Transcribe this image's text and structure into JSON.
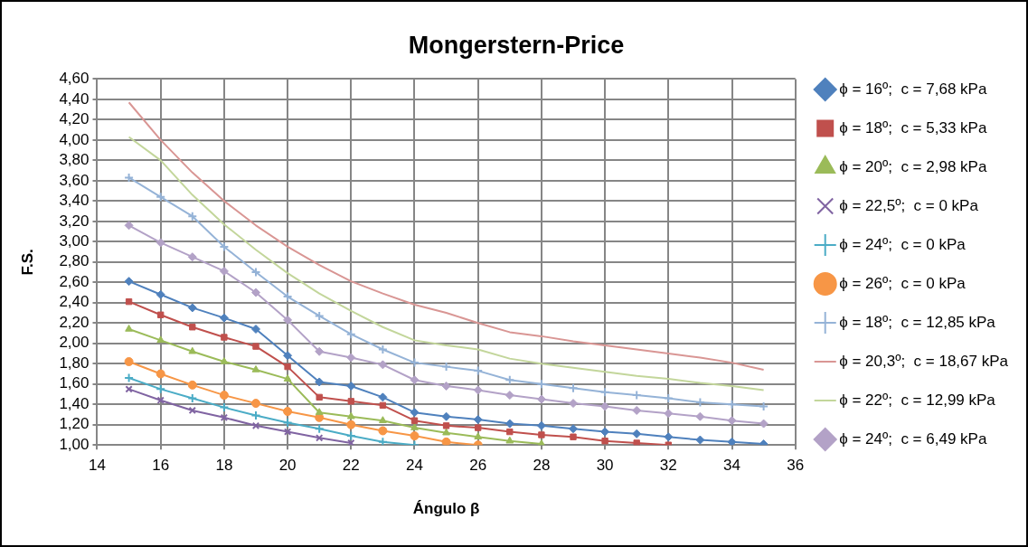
{
  "chart_data": {
    "type": "line",
    "title": "Mongerstern-Price",
    "xlabel": "Ángulo β",
    "ylabel": "F.S.",
    "x": [
      15,
      16,
      17,
      18,
      19,
      20,
      21,
      22,
      23,
      24,
      25,
      26,
      27,
      28,
      29,
      30,
      31,
      32,
      33,
      34,
      35
    ],
    "xlim": [
      14,
      36
    ],
    "xticks": [
      14,
      16,
      18,
      20,
      22,
      24,
      26,
      28,
      30,
      32,
      34,
      36
    ],
    "ylim": [
      1.0,
      4.6
    ],
    "yticks": [
      {
        "value": 1.0,
        "label": "1,00"
      },
      {
        "value": 1.2,
        "label": "1,20"
      },
      {
        "value": 1.4,
        "label": "1,40"
      },
      {
        "value": 1.6,
        "label": "1,60"
      },
      {
        "value": 1.8,
        "label": "1,80"
      },
      {
        "value": 2.0,
        "label": "2,00"
      },
      {
        "value": 2.2,
        "label": "2,20"
      },
      {
        "value": 2.4,
        "label": "2,40"
      },
      {
        "value": 2.6,
        "label": "2,60"
      },
      {
        "value": 2.8,
        "label": "2,80"
      },
      {
        "value": 3.0,
        "label": "3,00"
      },
      {
        "value": 3.2,
        "label": "3,20"
      },
      {
        "value": 3.4,
        "label": "3,40"
      },
      {
        "value": 3.6,
        "label": "3,60"
      },
      {
        "value": 3.8,
        "label": "3,80"
      },
      {
        "value": 4.0,
        "label": "4,00"
      },
      {
        "value": 4.2,
        "label": "4,20"
      },
      {
        "value": 4.4,
        "label": "4,40"
      },
      {
        "value": 4.6,
        "label": "4,60"
      }
    ],
    "grid": true,
    "legend": "right",
    "line_style": "solid",
    "series": [
      {
        "name": "ϕ = 16º;  c = 7,68 kPa",
        "color": "#4f81bd",
        "marker": "diamond",
        "values": [
          2.61,
          2.48,
          2.35,
          2.25,
          2.14,
          1.88,
          1.62,
          1.58,
          1.47,
          1.32,
          1.28,
          1.25,
          1.21,
          1.19,
          1.16,
          1.13,
          1.11,
          1.08,
          1.05,
          1.03,
          1.01
        ]
      },
      {
        "name": "ϕ = 18º;  c = 5,33 kPa",
        "color": "#c0504d",
        "marker": "square",
        "values": [
          2.41,
          2.28,
          2.16,
          2.06,
          1.97,
          1.77,
          1.47,
          1.43,
          1.39,
          1.24,
          1.19,
          1.17,
          1.13,
          1.1,
          1.08,
          1.04,
          1.02,
          1.0,
          null,
          null,
          null
        ]
      },
      {
        "name": "ϕ = 20º;  c = 2,98 kPa",
        "color": "#9bbb59",
        "marker": "triangle",
        "values": [
          2.14,
          2.03,
          1.92,
          1.82,
          1.74,
          1.65,
          1.32,
          1.28,
          1.24,
          1.17,
          1.12,
          1.08,
          1.04,
          1.01,
          null,
          null,
          null,
          null,
          null,
          null,
          null
        ]
      },
      {
        "name": "ϕ = 22,5º;  c = 0 kPa",
        "color": "#8064a2",
        "marker": "x",
        "values": [
          1.55,
          1.44,
          1.34,
          1.27,
          1.19,
          1.13,
          1.07,
          1.02,
          null,
          null,
          null,
          null,
          null,
          null,
          null,
          null,
          null,
          null,
          null,
          null,
          null
        ]
      },
      {
        "name": "ϕ = 24º;  c = 0 kPa",
        "color": "#4bacc6",
        "marker": "cross",
        "values": [
          1.66,
          1.55,
          1.46,
          1.37,
          1.29,
          1.22,
          1.16,
          1.09,
          1.03,
          1.0,
          null,
          null,
          null,
          null,
          null,
          null,
          null,
          null,
          null,
          null,
          null
        ]
      },
      {
        "name": "ϕ = 26º;  c = 0 kPa",
        "color": "#f79646",
        "marker": "circle",
        "values": [
          1.82,
          1.7,
          1.59,
          1.49,
          1.41,
          1.33,
          1.27,
          1.2,
          1.14,
          1.09,
          1.03,
          1.0,
          null,
          null,
          null,
          null,
          null,
          null,
          null,
          null,
          null
        ]
      },
      {
        "name": "ϕ = 18º;  c = 12,85 kPa",
        "color": "#95b3d7",
        "marker": "cross",
        "values": [
          3.63,
          3.44,
          3.25,
          2.95,
          2.7,
          2.46,
          2.27,
          2.09,
          1.94,
          1.81,
          1.77,
          1.73,
          1.64,
          1.6,
          1.56,
          1.52,
          1.49,
          1.46,
          1.42,
          1.4,
          1.38
        ]
      },
      {
        "name": "ϕ = 20,3º;  c = 18,67 kPa",
        "color": "#d99694",
        "marker": "none",
        "values": [
          4.37,
          4.0,
          3.68,
          3.4,
          3.16,
          2.95,
          2.77,
          2.61,
          2.49,
          2.38,
          2.3,
          2.2,
          2.11,
          2.07,
          2.02,
          1.98,
          1.94,
          1.9,
          1.86,
          1.81,
          1.74
        ]
      },
      {
        "name": "ϕ = 22º;  c = 12,99 kPa",
        "color": "#c3d69b",
        "marker": "none",
        "values": [
          4.03,
          3.8,
          3.46,
          3.17,
          2.92,
          2.69,
          2.49,
          2.32,
          2.16,
          2.03,
          1.98,
          1.94,
          1.85,
          1.8,
          1.76,
          1.72,
          1.68,
          1.65,
          1.61,
          1.58,
          1.54
        ]
      },
      {
        "name": "ϕ = 24º;  c = 6,49 kPa",
        "color": "#b3a2c7",
        "marker": "diamond",
        "values": [
          3.16,
          2.99,
          2.85,
          2.71,
          2.5,
          2.23,
          1.92,
          1.86,
          1.79,
          1.64,
          1.58,
          1.54,
          1.49,
          1.45,
          1.41,
          1.38,
          1.34,
          1.31,
          1.28,
          1.24,
          1.21
        ]
      }
    ]
  }
}
